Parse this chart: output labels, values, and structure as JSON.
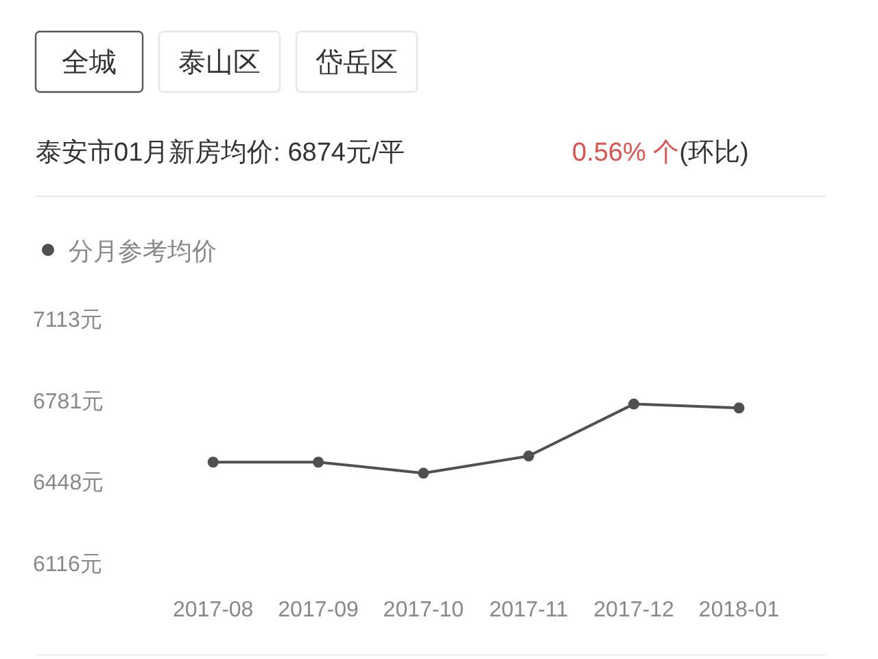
{
  "chart_data": {
    "type": "line",
    "title": "泰安市01月新房均价: 6874元/平",
    "annotations": [
      "全城",
      "泰山区",
      "岱岳区",
      "0.56% 个(环比)"
    ],
    "categories": [
      "2017-08",
      "2017-09",
      "2017-10",
      "2017-11",
      "2017-12",
      "2018-01"
    ],
    "series": [
      {
        "name": "分月参考均价",
        "color": "#505050",
        "values": [
          6527,
          6527,
          6482,
          6552,
          6764,
          6748
        ]
      }
    ],
    "ylim": [
      6116,
      7113
    ],
    "yticks": [
      {
        "value": 6116,
        "label": "6116元"
      },
      {
        "value": 6448,
        "label": "6448元"
      },
      {
        "value": 6781,
        "label": "6781元"
      },
      {
        "value": 7113,
        "label": "7113元"
      }
    ],
    "legend": "top left",
    "marker": "circle",
    "grid": false
  }
}
